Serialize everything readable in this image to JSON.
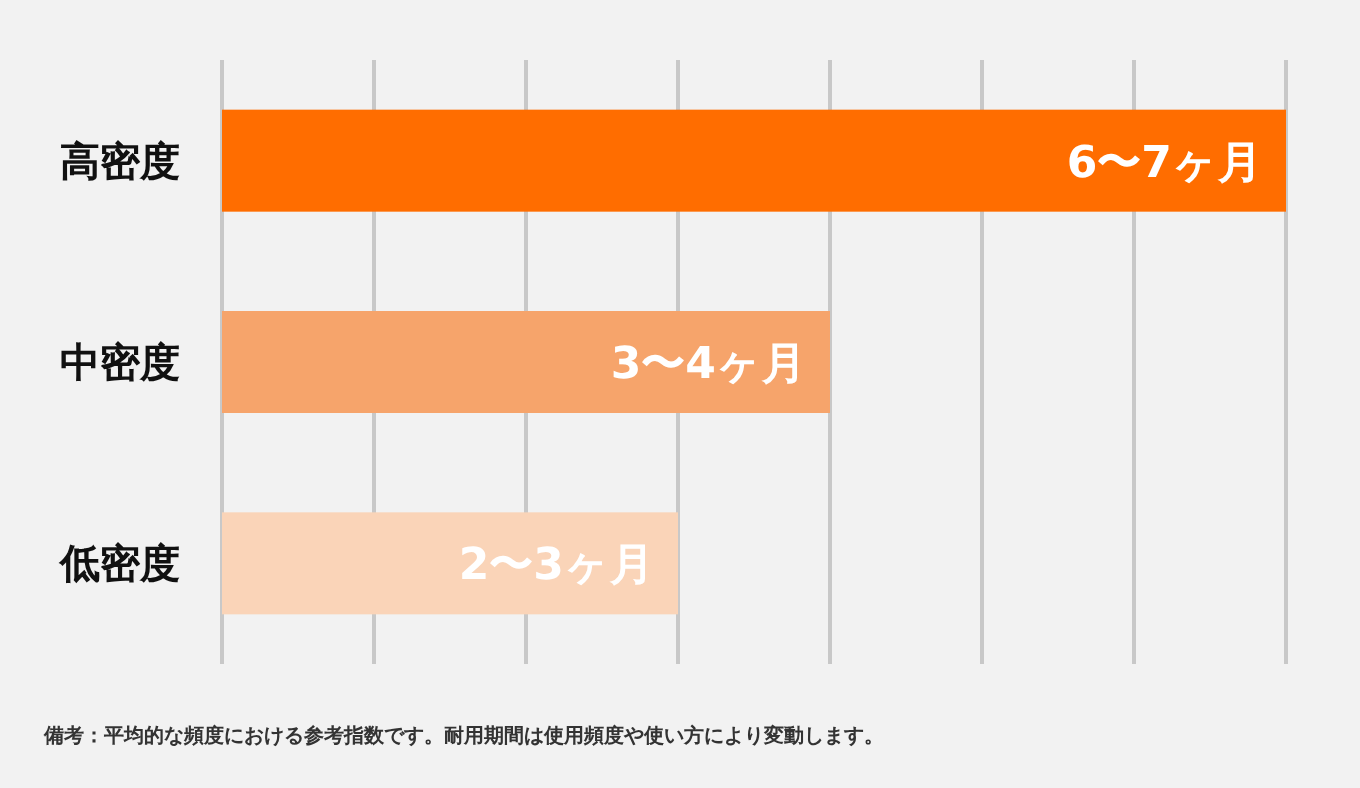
{
  "chart_data": {
    "type": "bar",
    "orientation": "horizontal",
    "grid": "x",
    "tick_labels": "y",
    "categories": [
      "高密度",
      "中密度",
      "低密度"
    ],
    "values": [
      7,
      4,
      3
    ],
    "colors": [
      "#ff6d00",
      "#f6a46b",
      "#fad4b8"
    ],
    "value_labels": [
      "6〜7ヶ月",
      "3〜4ヶ月",
      "2〜3ヶ月"
    ],
    "xlim": [
      0,
      7
    ],
    "xticks": [
      {
        "value": 0,
        "label": null
      },
      {
        "value": 1,
        "label": null
      },
      {
        "value": 2,
        "label": null
      },
      {
        "value": 3,
        "label": null
      },
      {
        "value": 4,
        "label": null
      },
      {
        "value": 5,
        "label": null
      },
      {
        "value": 6,
        "label": null
      },
      {
        "value": 7,
        "label": null
      }
    ],
    "annotations": [
      "備考：平均的な頻度における参考指数です。耐用期間は使用頻度や使い方により変動します。"
    ]
  }
}
